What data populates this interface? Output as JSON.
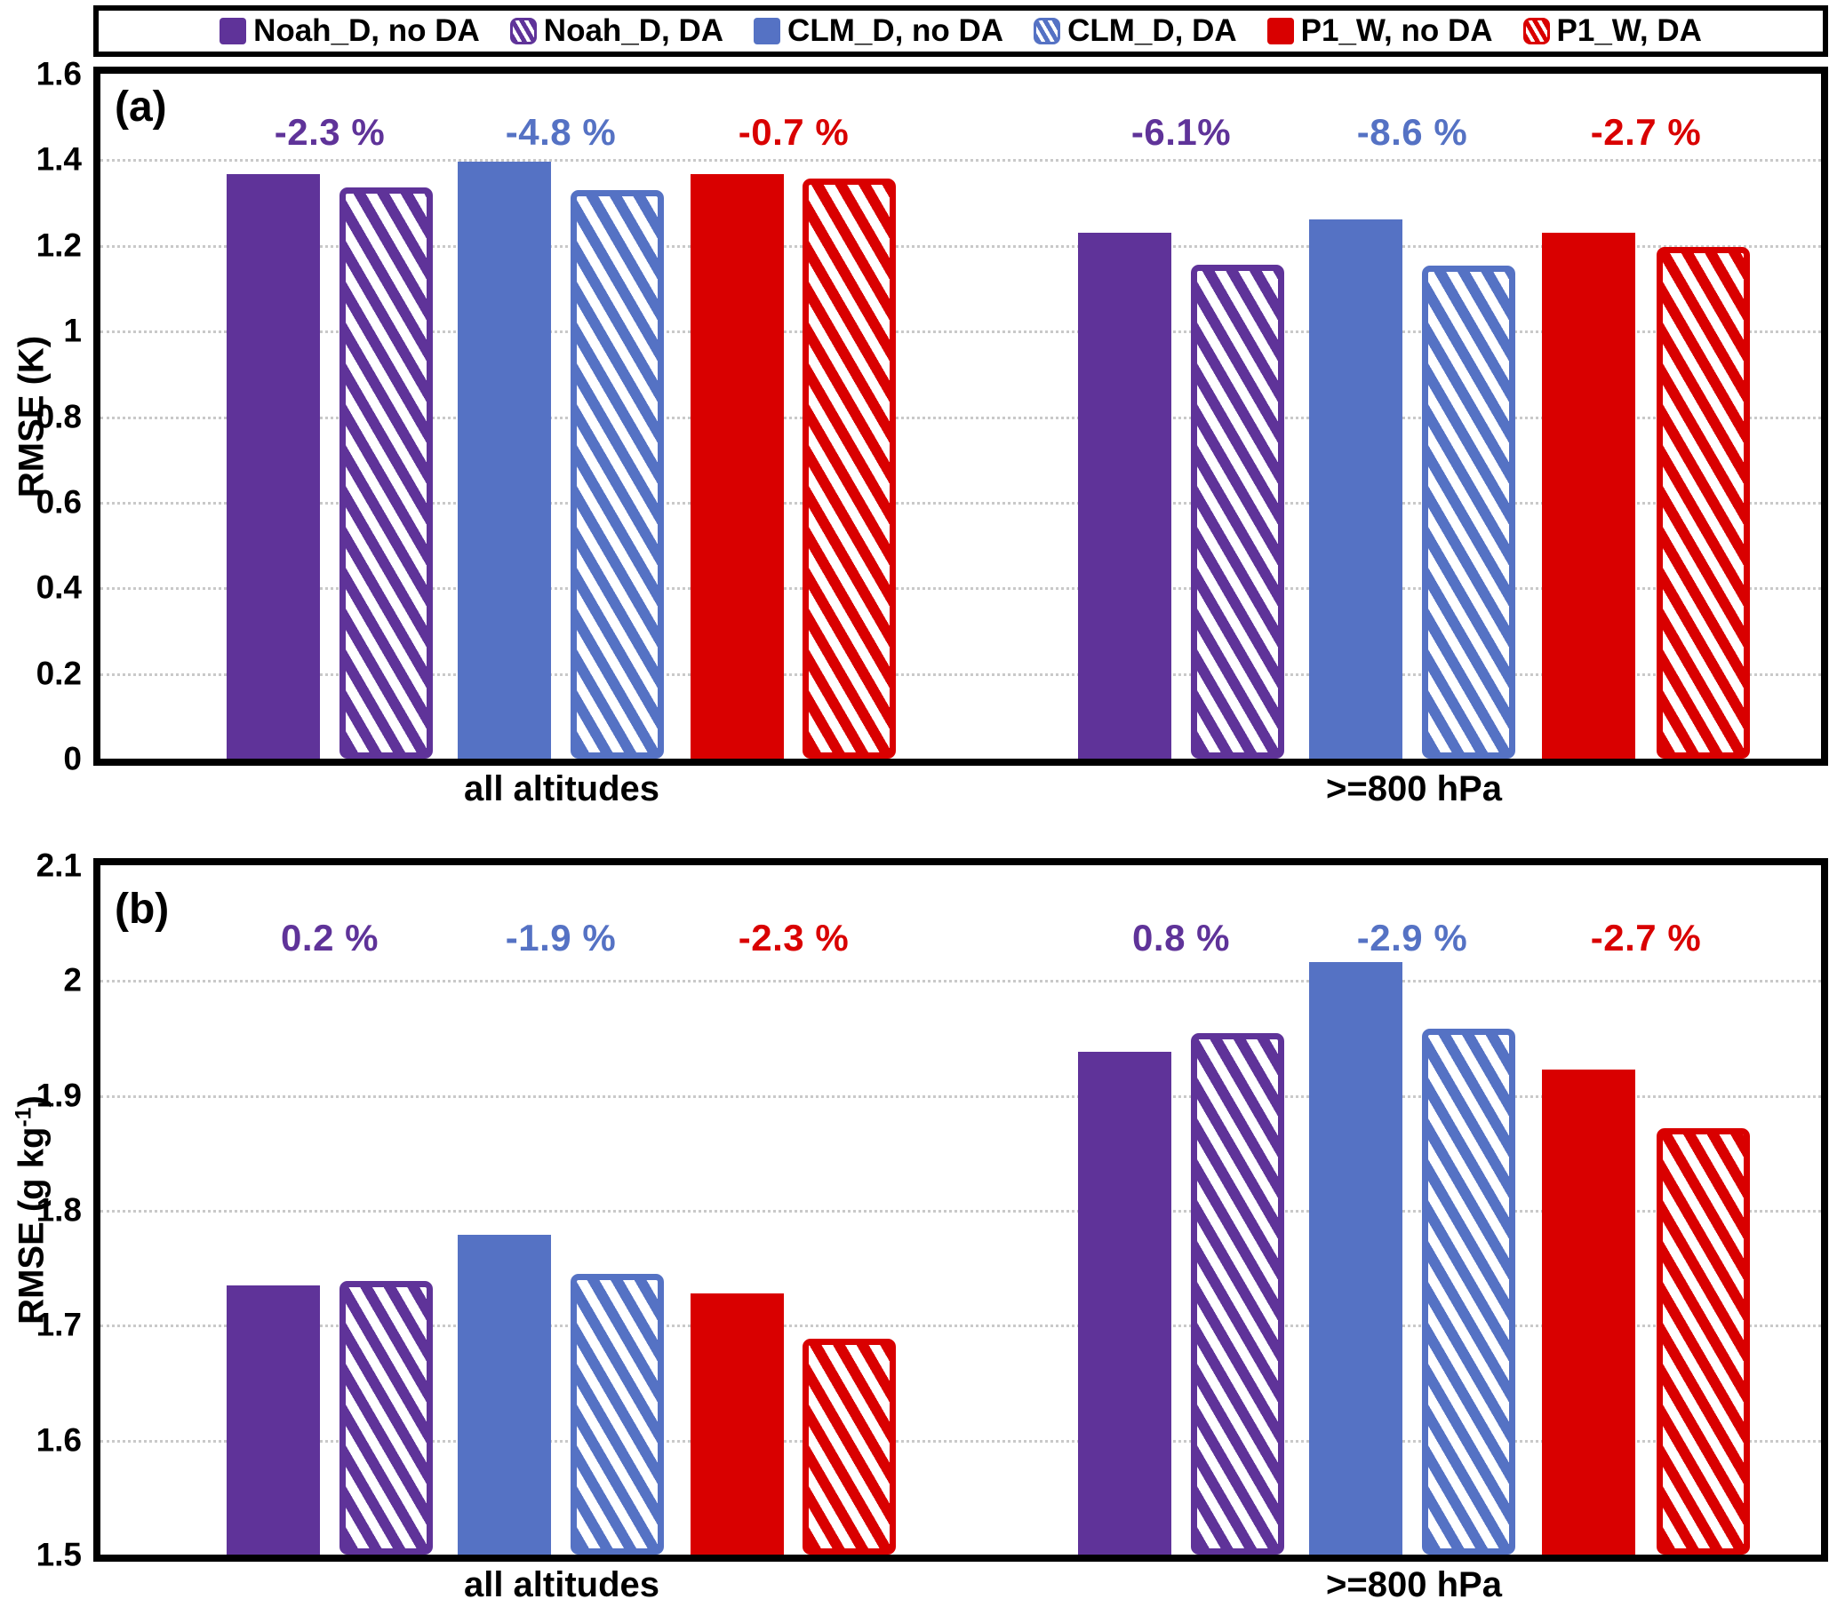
{
  "colors": {
    "purple": "#5F3399",
    "blue": "#5572C4",
    "red": "#D90000",
    "grid": "#C9C9C9",
    "frame": "#000000"
  },
  "legend": {
    "items": [
      {
        "label": "Noah_D, no DA",
        "color": "purple",
        "hatched": false
      },
      {
        "label": "Noah_D, DA",
        "color": "purple",
        "hatched": true
      },
      {
        "label": "CLM_D, no DA",
        "color": "blue",
        "hatched": false
      },
      {
        "label": "CLM_D, DA",
        "color": "blue",
        "hatched": true
      },
      {
        "label": "P1_W, no DA",
        "color": "red",
        "hatched": false
      },
      {
        "label": "P1_W, DA",
        "color": "red",
        "hatched": true
      }
    ]
  },
  "chart_data": [
    {
      "type": "bar",
      "panel_label": "(a)",
      "ylabel_pre": "RMSE (K)",
      "ylabel_sup": "",
      "ylabel_post": "",
      "ylim": [
        0,
        1.6
      ],
      "ytick_values": [
        1.6,
        1.4,
        1.2,
        1.0,
        0.8,
        0.6,
        0.4,
        0.2,
        0
      ],
      "ytick_labels": [
        "1.6",
        "1.4",
        "1.2",
        "1",
        "0.8",
        "0.6",
        "0.4",
        "0.2",
        "0"
      ],
      "grid": true,
      "legend_position": "top",
      "categories": [
        "all altitudes",
        ">=800 hPa"
      ],
      "series": [
        {
          "name": "Noah_D, no DA",
          "color": "purple",
          "style": "solid",
          "values": [
            1.365,
            1.228
          ]
        },
        {
          "name": "Noah_D, DA",
          "color": "purple",
          "style": "hatched",
          "values": [
            1.334,
            1.153
          ]
        },
        {
          "name": "CLM_D, no DA",
          "color": "blue",
          "style": "solid",
          "values": [
            1.395,
            1.259
          ]
        },
        {
          "name": "CLM_D, DA",
          "color": "blue",
          "style": "hatched",
          "values": [
            1.329,
            1.151
          ]
        },
        {
          "name": "P1_W, no DA",
          "color": "red",
          "style": "solid",
          "values": [
            1.365,
            1.229
          ]
        },
        {
          "name": "P1_W, DA",
          "color": "red",
          "style": "hatched",
          "values": [
            1.356,
            1.196
          ]
        }
      ],
      "annotations": [
        [
          {
            "text": "-2.3 %",
            "color": "purple"
          },
          {
            "text": "-4.8 %",
            "color": "blue"
          },
          {
            "text": "-0.7 %",
            "color": "red"
          }
        ],
        [
          {
            "text": "-6.1%",
            "color": "purple"
          },
          {
            "text": "-8.6 %",
            "color": "blue"
          },
          {
            "text": "-2.7 %",
            "color": "red"
          }
        ]
      ]
    },
    {
      "type": "bar",
      "panel_label": "(b)",
      "ylabel_pre": "RMSE (g kg",
      "ylabel_sup": "-1",
      "ylabel_post": ")",
      "ylim": [
        1.5,
        2.1
      ],
      "ytick_values": [
        2.1,
        2.0,
        1.9,
        1.8,
        1.7,
        1.6,
        1.5
      ],
      "ytick_labels": [
        "2.1",
        "2",
        "1.9",
        "1.8",
        "1.7",
        "1.6",
        "1.5"
      ],
      "grid": true,
      "legend_position": "top",
      "categories": [
        "all altitudes",
        ">=800 hPa"
      ],
      "series": [
        {
          "name": "Noah_D, no DA",
          "color": "purple",
          "style": "solid",
          "values": [
            1.734,
            1.938
          ]
        },
        {
          "name": "Noah_D, DA",
          "color": "purple",
          "style": "hatched",
          "values": [
            1.738,
            1.954
          ]
        },
        {
          "name": "CLM_D, no DA",
          "color": "blue",
          "style": "solid",
          "values": [
            1.778,
            2.016
          ]
        },
        {
          "name": "CLM_D, DA",
          "color": "blue",
          "style": "hatched",
          "values": [
            1.744,
            1.958
          ]
        },
        {
          "name": "P1_W, no DA",
          "color": "red",
          "style": "solid",
          "values": [
            1.727,
            1.922
          ]
        },
        {
          "name": "P1_W, DA",
          "color": "red",
          "style": "hatched",
          "values": [
            1.688,
            1.871
          ]
        }
      ],
      "annotations": [
        [
          {
            "text": "0.2 %",
            "color": "purple"
          },
          {
            "text": "-1.9 %",
            "color": "blue"
          },
          {
            "text": "-2.3 %",
            "color": "red"
          }
        ],
        [
          {
            "text": "0.8 %",
            "color": "purple"
          },
          {
            "text": "-2.9 %",
            "color": "blue"
          },
          {
            "text": "-2.7 %",
            "color": "red"
          }
        ]
      ]
    }
  ]
}
